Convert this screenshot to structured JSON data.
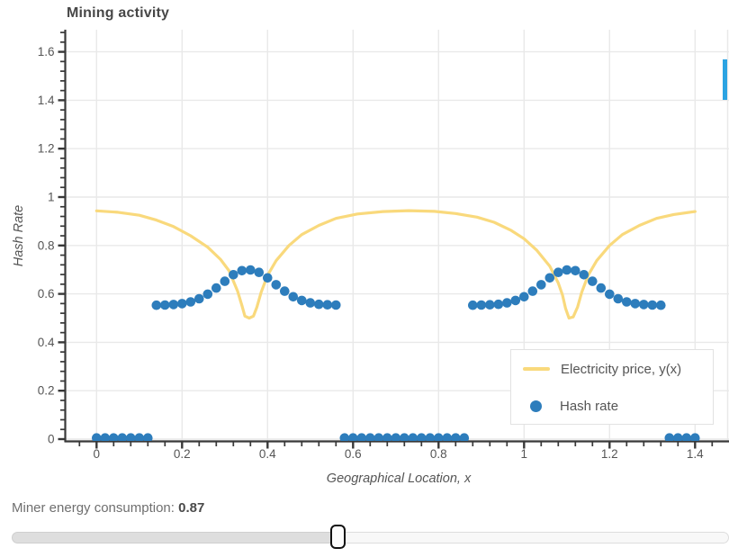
{
  "chart": {
    "title": "Mining activity",
    "x_axis": {
      "label": "Geographical Location, x",
      "tick_labels": [
        "0",
        "0.2",
        "0.4",
        "0.6",
        "0.8",
        "1",
        "1.2",
        "1.4"
      ]
    },
    "y_axis": {
      "label": "Hash Rate",
      "tick_labels": [
        "0",
        "0.2",
        "0.4",
        "0.6",
        "0.8",
        "1",
        "1.2",
        "1.4",
        "1.6"
      ]
    },
    "legend": [
      {
        "label": "Electricity price, y(x)",
        "marker": "line"
      },
      {
        "label": "Hash rate",
        "marker": "dot"
      }
    ]
  },
  "chart_data": {
    "type": "line+scatter",
    "title": "Mining activity",
    "xlabel": "Geographical Location, x",
    "ylabel": "Hash Rate",
    "xlim": [
      -0.074,
      1.48
    ],
    "ylim": [
      -0.01,
      1.7
    ],
    "x_major_ticks": [
      0,
      0.2,
      0.4,
      0.6,
      0.8,
      1,
      1.2,
      1.4
    ],
    "y_major_ticks": [
      0,
      0.2,
      0.4,
      0.6,
      0.8,
      1,
      1.2,
      1.4,
      1.6
    ],
    "minor_tick_step": 0.04,
    "grid": true,
    "legend_position": "bottom-right",
    "series": [
      {
        "name": "Electricity price, y(x)",
        "type": "line",
        "color": "#f9d97c",
        "points": [
          [
            0.0,
            0.943
          ],
          [
            0.05,
            0.937
          ],
          [
            0.1,
            0.925
          ],
          [
            0.14,
            0.905
          ],
          [
            0.18,
            0.878
          ],
          [
            0.22,
            0.84
          ],
          [
            0.26,
            0.793
          ],
          [
            0.29,
            0.742
          ],
          [
            0.31,
            0.695
          ],
          [
            0.33,
            0.61
          ],
          [
            0.34,
            0.552
          ],
          [
            0.347,
            0.508
          ],
          [
            0.357,
            0.5
          ],
          [
            0.367,
            0.508
          ],
          [
            0.375,
            0.545
          ],
          [
            0.385,
            0.607
          ],
          [
            0.4,
            0.677
          ],
          [
            0.42,
            0.737
          ],
          [
            0.45,
            0.8
          ],
          [
            0.48,
            0.845
          ],
          [
            0.52,
            0.883
          ],
          [
            0.56,
            0.912
          ],
          [
            0.61,
            0.93
          ],
          [
            0.67,
            0.94
          ],
          [
            0.73,
            0.944
          ],
          [
            0.79,
            0.941
          ],
          [
            0.84,
            0.932
          ],
          [
            0.89,
            0.917
          ],
          [
            0.93,
            0.896
          ],
          [
            0.97,
            0.862
          ],
          [
            1.0,
            0.828
          ],
          [
            1.03,
            0.78
          ],
          [
            1.06,
            0.715
          ],
          [
            1.08,
            0.645
          ],
          [
            1.09,
            0.595
          ],
          [
            1.097,
            0.54
          ],
          [
            1.105,
            0.5
          ],
          [
            1.115,
            0.505
          ],
          [
            1.125,
            0.545
          ],
          [
            1.135,
            0.607
          ],
          [
            1.15,
            0.677
          ],
          [
            1.17,
            0.737
          ],
          [
            1.2,
            0.8
          ],
          [
            1.23,
            0.845
          ],
          [
            1.27,
            0.883
          ],
          [
            1.31,
            0.912
          ],
          [
            1.35,
            0.928
          ],
          [
            1.4,
            0.94
          ]
        ]
      },
      {
        "name": "Hash rate",
        "type": "scatter",
        "color": "#2d7dbc",
        "marker_radius": 5.3,
        "points": [
          [
            0.0,
            0.005
          ],
          [
            0.02,
            0.005
          ],
          [
            0.04,
            0.005
          ],
          [
            0.06,
            0.005
          ],
          [
            0.08,
            0.005
          ],
          [
            0.1,
            0.005
          ],
          [
            0.12,
            0.005
          ],
          [
            0.14,
            0.553
          ],
          [
            0.16,
            0.554
          ],
          [
            0.18,
            0.556
          ],
          [
            0.2,
            0.56
          ],
          [
            0.22,
            0.567
          ],
          [
            0.24,
            0.58
          ],
          [
            0.26,
            0.599
          ],
          [
            0.28,
            0.624
          ],
          [
            0.3,
            0.652
          ],
          [
            0.32,
            0.679
          ],
          [
            0.34,
            0.696
          ],
          [
            0.36,
            0.699
          ],
          [
            0.38,
            0.689
          ],
          [
            0.4,
            0.666
          ],
          [
            0.42,
            0.638
          ],
          [
            0.44,
            0.611
          ],
          [
            0.46,
            0.588
          ],
          [
            0.48,
            0.573
          ],
          [
            0.5,
            0.563
          ],
          [
            0.52,
            0.557
          ],
          [
            0.54,
            0.555
          ],
          [
            0.56,
            0.554
          ],
          [
            0.58,
            0.005
          ],
          [
            0.6,
            0.005
          ],
          [
            0.62,
            0.005
          ],
          [
            0.64,
            0.005
          ],
          [
            0.66,
            0.005
          ],
          [
            0.68,
            0.005
          ],
          [
            0.7,
            0.005
          ],
          [
            0.72,
            0.005
          ],
          [
            0.74,
            0.005
          ],
          [
            0.76,
            0.005
          ],
          [
            0.78,
            0.005
          ],
          [
            0.8,
            0.005
          ],
          [
            0.82,
            0.005
          ],
          [
            0.84,
            0.005
          ],
          [
            0.86,
            0.005
          ],
          [
            0.88,
            0.553
          ],
          [
            0.9,
            0.554
          ],
          [
            0.92,
            0.555
          ],
          [
            0.94,
            0.557
          ],
          [
            0.96,
            0.563
          ],
          [
            0.98,
            0.573
          ],
          [
            1.0,
            0.588
          ],
          [
            1.02,
            0.611
          ],
          [
            1.04,
            0.638
          ],
          [
            1.06,
            0.666
          ],
          [
            1.08,
            0.689
          ],
          [
            1.1,
            0.699
          ],
          [
            1.12,
            0.696
          ],
          [
            1.14,
            0.679
          ],
          [
            1.16,
            0.652
          ],
          [
            1.18,
            0.624
          ],
          [
            1.2,
            0.599
          ],
          [
            1.22,
            0.58
          ],
          [
            1.24,
            0.567
          ],
          [
            1.26,
            0.56
          ],
          [
            1.28,
            0.556
          ],
          [
            1.3,
            0.554
          ],
          [
            1.32,
            0.553
          ],
          [
            1.34,
            0.005
          ],
          [
            1.36,
            0.005
          ],
          [
            1.38,
            0.005
          ],
          [
            1.4,
            0.005
          ]
        ]
      }
    ]
  },
  "controls": {
    "slider": {
      "label": "Miner energy consumption:",
      "value": "0.87"
    }
  },
  "colors": {
    "price_line": "#f9d97c",
    "hash_dots": "#2d7dbc",
    "edge_bar": "#2ba3e2",
    "axis": "#383838",
    "grid": "#e9e9e9",
    "tick_label": "#555555"
  }
}
